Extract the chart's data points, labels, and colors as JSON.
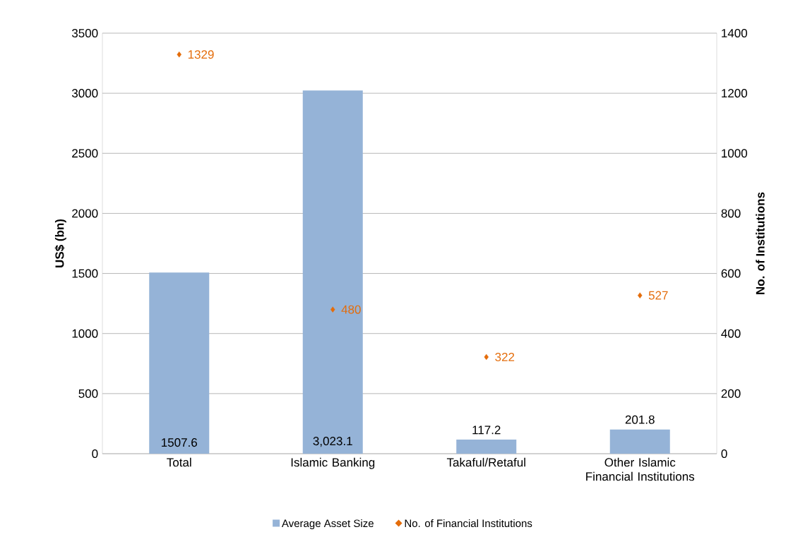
{
  "chart_data": {
    "type": "bar",
    "categories": [
      "Total",
      "Islamic Banking",
      "Takaful/Retaful",
      "Other Islamic Financial Institutions"
    ],
    "ylabel": "US$ (bn)",
    "y2label": "No. of Institutions",
    "ylim": [
      0,
      3500
    ],
    "yticks": [
      0,
      500,
      1000,
      1500,
      2000,
      2500,
      3000,
      3500
    ],
    "y2lim": [
      0,
      1400
    ],
    "y2ticks": [
      0,
      200,
      400,
      600,
      800,
      1000,
      1200,
      1400
    ],
    "grid": "y",
    "legend": "bottom",
    "series": [
      {
        "name": "Average Asset Size",
        "color": "#95b3d7",
        "values": [
          1507.6,
          3023.1,
          117.2,
          201.8
        ],
        "value_labels": [
          "1507.6",
          "3,023.1",
          "117.2",
          "201.8"
        ]
      },
      {
        "name": "No. of Financial Institutions",
        "type": "scatter",
        "axis": "y2",
        "marker": "diamond",
        "color": "#e46c0a",
        "values": [
          1329,
          480,
          322,
          527
        ],
        "value_labels": [
          "1329",
          "480",
          "322",
          "527"
        ]
      }
    ]
  }
}
